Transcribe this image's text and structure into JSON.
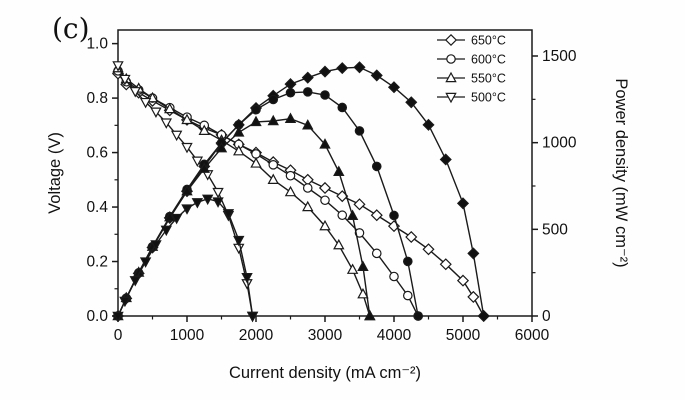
{
  "figure_label": "(c)",
  "chart_data": {
    "type": "line",
    "title": "",
    "x_axis": {
      "label": "Current density (mA cm⁻²)",
      "min": 0,
      "max": 6000,
      "tick_values": [
        0,
        1000,
        2000,
        3000,
        4000,
        5000,
        6000
      ],
      "tick_labels": [
        "0",
        "1000",
        "2000",
        "3000",
        "4000",
        "5000",
        "6000"
      ],
      "minor_step": 500
    },
    "y_left": {
      "label": "Voltage (V)",
      "min": 0,
      "max": 1.05,
      "tick_values": [
        0,
        0.2,
        0.4,
        0.6,
        0.8,
        1.0
      ],
      "tick_labels": [
        "0.0",
        "0.2",
        "0.4",
        "0.6",
        "0.8",
        "1.0"
      ],
      "minor_step": 0.1
    },
    "y_right": {
      "label": "Power density (mW cm⁻²)",
      "min": 0,
      "max": 1650,
      "tick_values": [
        0,
        500,
        1000,
        1500
      ],
      "tick_labels": [
        "0",
        "500",
        "1000",
        "1500"
      ],
      "minor_step": 250
    },
    "legend": [
      {
        "label": "650°C",
        "marker": "diamond"
      },
      {
        "label": "600°C",
        "marker": "circle"
      },
      {
        "label": "550°C",
        "marker": "triangle-up"
      },
      {
        "label": "500°C",
        "marker": "triangle-down"
      }
    ],
    "line_color": "#1a1a1a",
    "series": [
      {
        "name": "650°C voltage",
        "axis": "left",
        "marker": "diamond",
        "fill": "open",
        "x": [
          0,
          120,
          300,
          500,
          750,
          1000,
          1250,
          1500,
          1750,
          2000,
          2250,
          2500,
          2750,
          3000,
          3250,
          3500,
          3750,
          4000,
          4250,
          4500,
          4750,
          5000,
          5150,
          5300
        ],
        "y": [
          0.89,
          0.85,
          0.82,
          0.79,
          0.755,
          0.72,
          0.69,
          0.665,
          0.63,
          0.6,
          0.565,
          0.535,
          0.5,
          0.47,
          0.44,
          0.41,
          0.37,
          0.33,
          0.29,
          0.245,
          0.19,
          0.13,
          0.07,
          0.0
        ]
      },
      {
        "name": "600°C voltage",
        "axis": "left",
        "marker": "circle",
        "fill": "open",
        "x": [
          0,
          120,
          300,
          500,
          750,
          1000,
          1250,
          1500,
          1750,
          2000,
          2250,
          2500,
          2750,
          3000,
          3250,
          3500,
          3750,
          4000,
          4200,
          4350
        ],
        "y": [
          0.9,
          0.86,
          0.83,
          0.8,
          0.765,
          0.73,
          0.7,
          0.665,
          0.63,
          0.595,
          0.555,
          0.515,
          0.47,
          0.425,
          0.37,
          0.305,
          0.23,
          0.145,
          0.075,
          0.0
        ]
      },
      {
        "name": "550°C voltage",
        "axis": "left",
        "marker": "triangle-up",
        "fill": "open",
        "x": [
          0,
          120,
          300,
          500,
          750,
          1000,
          1250,
          1500,
          1750,
          2000,
          2250,
          2500,
          2750,
          3000,
          3200,
          3400,
          3550,
          3650
        ],
        "y": [
          0.91,
          0.87,
          0.835,
          0.8,
          0.76,
          0.72,
          0.68,
          0.645,
          0.605,
          0.56,
          0.5,
          0.455,
          0.4,
          0.33,
          0.26,
          0.17,
          0.08,
          0.0
        ]
      },
      {
        "name": "500°C voltage",
        "axis": "left",
        "marker": "triangle-down",
        "fill": "open",
        "x": [
          0,
          100,
          250,
          400,
          550,
          700,
          850,
          1000,
          1150,
          1300,
          1450,
          1600,
          1750,
          1870,
          1950
        ],
        "y": [
          0.92,
          0.87,
          0.825,
          0.785,
          0.75,
          0.71,
          0.665,
          0.62,
          0.57,
          0.52,
          0.455,
          0.37,
          0.25,
          0.12,
          0.0
        ]
      },
      {
        "name": "650°C power density",
        "axis": "right",
        "marker": "diamond",
        "fill": "filled",
        "x": [
          0,
          120,
          300,
          500,
          750,
          1000,
          1250,
          1500,
          1750,
          2000,
          2250,
          2500,
          2750,
          3000,
          3250,
          3500,
          3750,
          4000,
          4250,
          4500,
          4750,
          5000,
          5150,
          5300
        ],
        "y": [
          0,
          102,
          246,
          395,
          566,
          720,
          863,
          998,
          1103,
          1200,
          1271,
          1338,
          1375,
          1410,
          1430,
          1435,
          1388,
          1320,
          1233,
          1103,
          903,
          650,
          361,
          0
        ]
      },
      {
        "name": "600°C power density",
        "axis": "right",
        "marker": "circle",
        "fill": "filled",
        "x": [
          0,
          120,
          300,
          500,
          750,
          1000,
          1250,
          1500,
          1750,
          2000,
          2250,
          2500,
          2750,
          3000,
          3250,
          3500,
          3750,
          4000,
          4200,
          4350
        ],
        "y": [
          0,
          103,
          249,
          400,
          574,
          730,
          875,
          998,
          1103,
          1190,
          1249,
          1288,
          1293,
          1275,
          1203,
          1068,
          863,
          580,
          315,
          0
        ]
      },
      {
        "name": "550°C power density",
        "axis": "right",
        "marker": "triangle-up",
        "fill": "filled",
        "x": [
          0,
          120,
          300,
          500,
          750,
          1000,
          1250,
          1500,
          1750,
          2000,
          2250,
          2500,
          2750,
          3000,
          3200,
          3400,
          3550,
          3650
        ],
        "y": [
          0,
          104,
          251,
          400,
          570,
          720,
          850,
          968,
          1059,
          1120,
          1125,
          1138,
          1100,
          990,
          832,
          578,
          284,
          0
        ]
      },
      {
        "name": "500°C power density",
        "axis": "right",
        "marker": "triangle-down",
        "fill": "filled",
        "x": [
          0,
          100,
          250,
          400,
          550,
          700,
          850,
          1000,
          1150,
          1300,
          1450,
          1600,
          1750,
          1870,
          1950
        ],
        "y": [
          0,
          87,
          206,
          314,
          413,
          497,
          565,
          620,
          656,
          676,
          660,
          592,
          438,
          224,
          0
        ]
      }
    ]
  }
}
